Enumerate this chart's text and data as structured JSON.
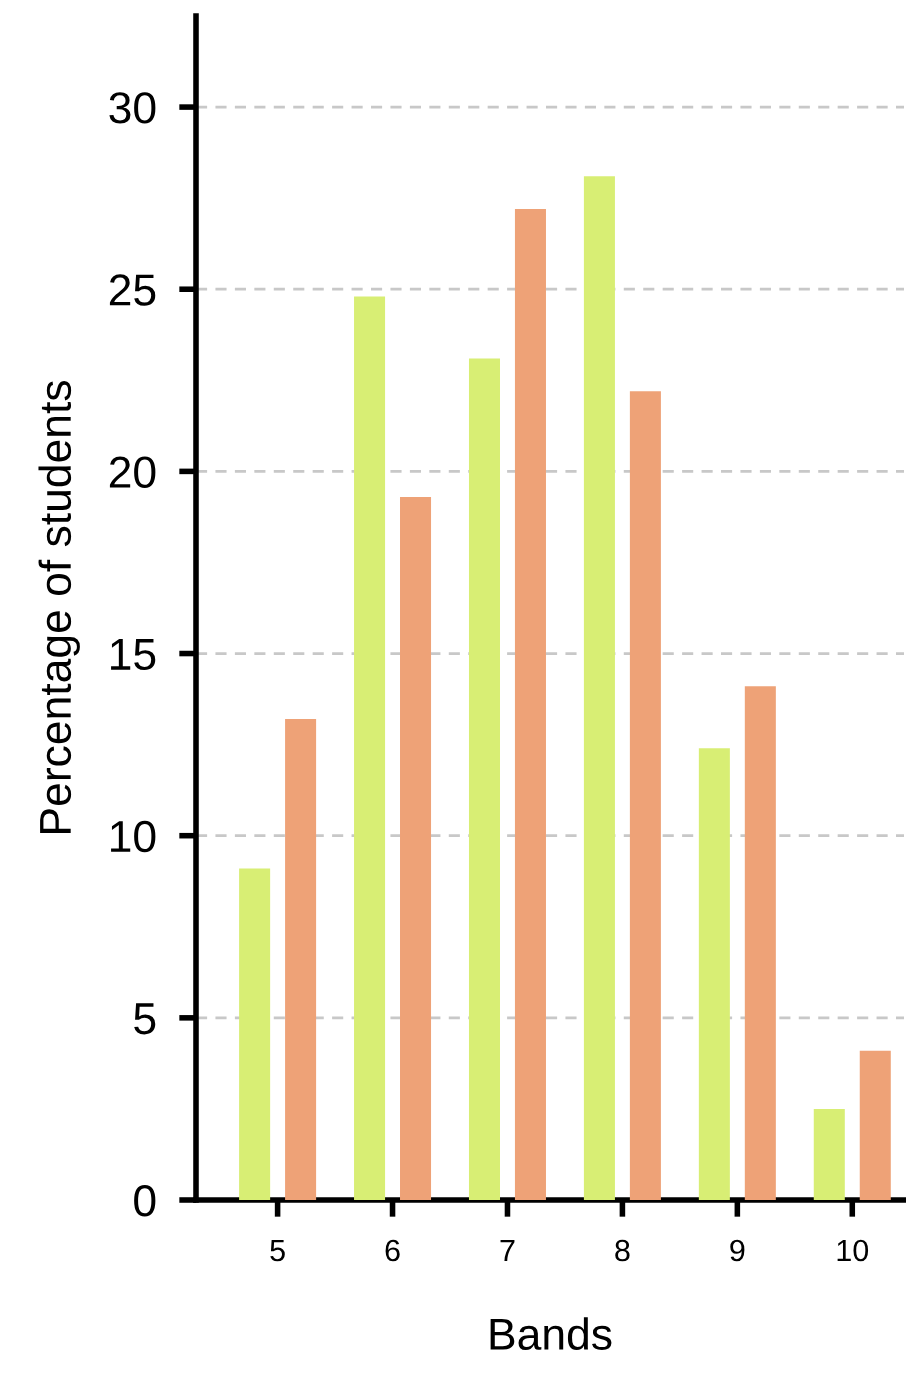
{
  "chart_data": {
    "type": "bar",
    "xlabel": "Bands",
    "ylabel": "Percentage of students",
    "categories": [
      "5",
      "6",
      "7",
      "8",
      "9",
      "10"
    ],
    "series": [
      {
        "color": "#d8ee74",
        "values": [
          9.1,
          24.8,
          23.1,
          28.1,
          12.4,
          2.5
        ]
      },
      {
        "color": "#eea277",
        "values": [
          13.2,
          19.3,
          27.2,
          22.2,
          14.1,
          4.1
        ]
      }
    ],
    "ylim": [
      0,
      32.5
    ],
    "yticks": [
      0,
      5,
      10,
      15,
      20,
      25,
      30
    ],
    "grid": "y"
  }
}
